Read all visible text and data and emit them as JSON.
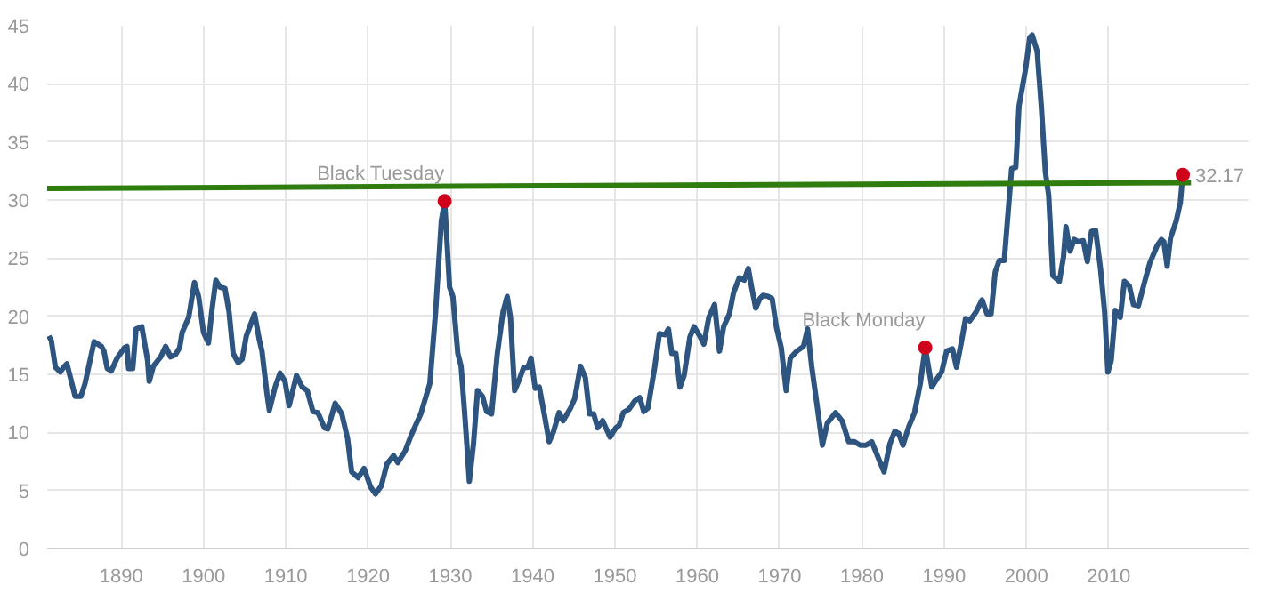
{
  "chart_data": {
    "type": "line",
    "xlim": [
      1881,
      2027
    ],
    "xticks": [
      1890,
      1900,
      1910,
      1920,
      1930,
      1940,
      1950,
      1960,
      1970,
      1980,
      1990,
      2000,
      2010
    ],
    "ylim": [
      0,
      45
    ],
    "yticks": [
      0,
      5,
      10,
      15,
      20,
      25,
      30,
      35,
      40,
      45
    ],
    "grid": true,
    "series": [
      {
        "color": "#2e5480",
        "x": [
          1881.2,
          1881.5,
          1882,
          1882.6,
          1883.1,
          1883.4,
          1884.4,
          1885.1,
          1885.6,
          1886.4,
          1886.7,
          1887.6,
          1887.9,
          1888.3,
          1888.8,
          1889.5,
          1890.4,
          1890.7,
          1890.9,
          1891.4,
          1891.8,
          1892.5,
          1893.2,
          1893.4,
          1893.9,
          1894.8,
          1895.4,
          1896.0,
          1896.6,
          1897.1,
          1897.4,
          1898.2,
          1898.9,
          1899.4,
          1900.0,
          1900.6,
          1901.0,
          1901.5,
          1902.0,
          1902.6,
          1903.1,
          1903.6,
          1904.2,
          1904.7,
          1905.2,
          1906.2,
          1906.8,
          1907.1,
          1907.7,
          1908.0,
          1908.7,
          1909.3,
          1909.9,
          1910.4,
          1911.3,
          1912.0,
          1912.6,
          1913.3,
          1913.9,
          1914.7,
          1915.1,
          1916.0,
          1916.8,
          1917.5,
          1918.0,
          1918.8,
          1919.5,
          1920.3,
          1920.9,
          1921.6,
          1922.3,
          1923.1,
          1923.6,
          1924.5,
          1925.2,
          1925.7,
          1926.4,
          1927.5,
          1928.2,
          1928.9,
          1929.3,
          1929.9,
          1930.3,
          1930.9,
          1931.3,
          1931.8,
          1932.3,
          1932.8,
          1933.3,
          1933.9,
          1934.4,
          1935.0,
          1935.7,
          1936.4,
          1936.9,
          1937.3,
          1937.8,
          1938.4,
          1938.9,
          1939.4,
          1939.8,
          1940.3,
          1940.8,
          1941.4,
          1942.0,
          1942.5,
          1943.2,
          1943.7,
          1944.6,
          1945.1,
          1945.8,
          1946.4,
          1946.9,
          1947.4,
          1947.9,
          1948.5,
          1949.4,
          1950.1,
          1950.5,
          1951.0,
          1951.7,
          1952.4,
          1953.0,
          1953.5,
          1954.0,
          1954.8,
          1955.4,
          1956.1,
          1956.5,
          1956.9,
          1957.4,
          1957.9,
          1958.4,
          1959.1,
          1959.6,
          1960.3,
          1960.8,
          1961.4,
          1962.1,
          1962.7,
          1963.2,
          1963.9,
          1964.4,
          1965.1,
          1965.7,
          1966.2,
          1966.6,
          1967.1,
          1967.6,
          1968.0,
          1968.6,
          1969.1,
          1969.6,
          1970.2,
          1970.8,
          1971.3,
          1972.1,
          1972.9,
          1973.4,
          1973.9,
          1974.6,
          1975.2,
          1975.8,
          1976.8,
          1977.6,
          1978.4,
          1979.1,
          1979.8,
          1980.5,
          1981.2,
          1982.0,
          1982.7,
          1983.4,
          1984.0,
          1984.5,
          1985.0,
          1985.7,
          1986.4,
          1987.1,
          1987.7,
          1988.5,
          1989.2,
          1989.7,
          1990.3,
          1991.0,
          1991.5,
          1992.1,
          1992.6,
          1993.1,
          1993.9,
          1994.6,
          1995.2,
          1995.7,
          1996.2,
          1996.7,
          1997.3,
          1998.2,
          1998.7,
          1999.1,
          1999.9,
          2000.4,
          2000.7,
          2001.3,
          2001.8,
          2002.3,
          2002.7,
          2003.2,
          2004.0,
          2004.5,
          2004.8,
          2005.3,
          2005.8,
          2006.3,
          2006.9,
          2007.4,
          2007.9,
          2008.4,
          2009.0,
          2009.5,
          2009.9,
          2010.3,
          2010.8,
          2011.4,
          2011.9,
          2012.5,
          2013.0,
          2013.6,
          2014.3,
          2015.0,
          2015.9,
          2016.4,
          2016.7,
          2017.1,
          2017.5,
          2018.2,
          2018.7,
          2019.0
        ],
        "values": [
          18.3,
          17.9,
          15.6,
          15.2,
          15.7,
          15.9,
          13.1,
          13.1,
          14.2,
          16.8,
          17.8,
          17.4,
          17.0,
          15.5,
          15.3,
          16.4,
          17.3,
          17.4,
          15.5,
          15.5,
          18.9,
          19.1,
          16.2,
          14.4,
          15.7,
          16.5,
          17.4,
          16.5,
          16.7,
          17.3,
          18.6,
          19.9,
          22.9,
          21.7,
          18.6,
          17.7,
          20.4,
          23.1,
          22.5,
          22.4,
          20.4,
          16.8,
          16.0,
          16.3,
          18.3,
          20.2,
          17.9,
          17.0,
          13.4,
          11.9,
          13.9,
          15.1,
          14.4,
          12.3,
          14.9,
          13.9,
          13.6,
          11.8,
          11.7,
          10.4,
          10.3,
          12.5,
          11.6,
          9.5,
          6.6,
          6.1,
          6.9,
          5.3,
          4.7,
          5.4,
          7.3,
          8.0,
          7.4,
          8.4,
          9.7,
          10.5,
          11.6,
          14.2,
          20.4,
          28.2,
          29.9,
          22.5,
          21.7,
          16.8,
          15.7,
          11.0,
          5.8,
          9.0,
          13.6,
          13.1,
          11.8,
          11.6,
          16.8,
          20.4,
          21.7,
          19.9,
          13.6,
          14.6,
          15.6,
          15.6,
          16.4,
          13.8,
          13.9,
          11.6,
          9.2,
          10.0,
          11.7,
          11.0,
          12.1,
          12.9,
          15.7,
          14.7,
          11.6,
          11.6,
          10.4,
          11.0,
          9.6,
          10.4,
          10.6,
          11.7,
          12.0,
          12.7,
          13.0,
          11.8,
          12.1,
          15.5,
          18.5,
          18.4,
          18.9,
          16.8,
          16.8,
          13.9,
          14.9,
          18.2,
          19.1,
          18.3,
          17.6,
          19.9,
          21.0,
          17.0,
          19.1,
          20.2,
          22.0,
          23.3,
          23.1,
          24.1,
          22.5,
          20.7,
          21.5,
          21.8,
          21.7,
          21.5,
          19.1,
          17.3,
          13.6,
          16.4,
          17.0,
          17.4,
          18.9,
          15.7,
          12.1,
          8.9,
          10.8,
          11.7,
          11.0,
          9.2,
          9.2,
          8.9,
          8.9,
          9.2,
          7.8,
          6.6,
          9.0,
          10.1,
          9.9,
          8.9,
          10.5,
          11.7,
          14.2,
          17.3,
          13.9,
          14.7,
          15.2,
          17.0,
          17.2,
          15.6,
          17.8,
          19.8,
          19.6,
          20.4,
          21.4,
          20.2,
          20.2,
          23.8,
          24.8,
          24.8,
          32.7,
          32.8,
          38.1,
          41.3,
          44.0,
          44.2,
          42.8,
          38.1,
          32.4,
          30.4,
          23.5,
          23.0,
          25.1,
          27.7,
          25.6,
          26.6,
          26.4,
          26.5,
          24.7,
          27.3,
          27.4,
          24.1,
          20.4,
          15.2,
          16.2,
          20.5,
          19.9,
          23.0,
          22.6,
          21.0,
          20.9,
          22.8,
          24.6,
          26.1,
          26.6,
          26.4,
          24.3,
          26.7,
          28.2,
          29.8,
          32.2
        ]
      },
      {
        "color": "#2e7d0e",
        "x": [
          1881,
          2020
        ],
        "values": [
          31.0,
          31.5
        ]
      },
      {
        "type": "scatter",
        "color": "#d0021b",
        "x": [
          1929.3,
          1987.7,
          2019.0
        ],
        "values": [
          29.9,
          17.3,
          32.17
        ],
        "value_labels": [
          null,
          null,
          "32.17"
        ]
      }
    ],
    "annotations": [
      {
        "text": "Black Tuesday",
        "x": 1929.3,
        "y": 29.9
      },
      {
        "text": "Black Monday",
        "x": 1987.7,
        "y": 17.3
      }
    ]
  }
}
